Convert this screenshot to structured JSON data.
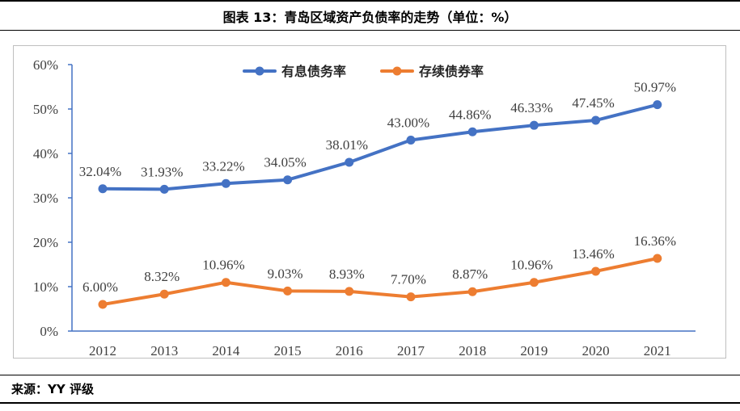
{
  "title": "图表 13：青岛区域资产负债率的走势（单位：%）",
  "source": "来源：YY 评级",
  "chart_data": {
    "type": "line",
    "categories": [
      "2012",
      "2013",
      "2014",
      "2015",
      "2016",
      "2017",
      "2018",
      "2019",
      "2020",
      "2021"
    ],
    "ylim": [
      0,
      60
    ],
    "yticks": [
      "0%",
      "10%",
      "20%",
      "30%",
      "40%",
      "50%",
      "60%"
    ],
    "legend_position": "top",
    "grid": false,
    "series": [
      {
        "name": "有息债务率",
        "color": "#4472C4",
        "values": [
          32.04,
          31.93,
          33.22,
          34.05,
          38.01,
          43.0,
          44.86,
          46.33,
          47.45,
          50.97
        ],
        "labels": [
          "32.04%",
          "31.93%",
          "33.22%",
          "34.05%",
          "38.01%",
          "43.00%",
          "44.86%",
          "46.33%",
          "47.45%",
          "50.97%"
        ]
      },
      {
        "name": "存续债券率",
        "color": "#ED7D31",
        "values": [
          6.0,
          8.32,
          10.96,
          9.03,
          8.93,
          7.7,
          8.87,
          10.96,
          13.46,
          16.36
        ],
        "labels": [
          "6.00%",
          "8.32%",
          "10.96%",
          "9.03%",
          "8.93%",
          "7.70%",
          "8.87%",
          "10.96%",
          "13.46%",
          "16.36%"
        ]
      }
    ]
  }
}
